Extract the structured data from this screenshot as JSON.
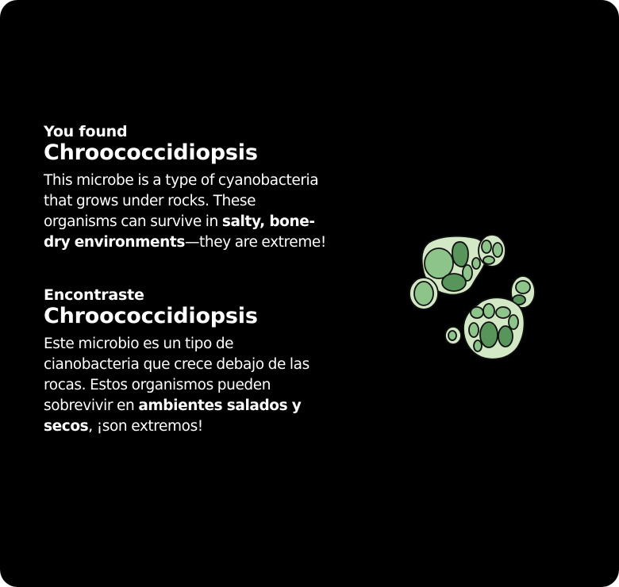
{
  "english": {
    "kicker": "You found",
    "name": "Chroococcidiopsis",
    "body_part1": "This microbe is a type of cyanobacteria that grows under rocks. These organisms can survive in ",
    "body_bold": "salty, bone-dry environments",
    "body_part2": "—they are extreme!"
  },
  "spanish": {
    "kicker": "Encontraste",
    "name": "Chroococcidiopsis",
    "body_part1": "Este microbio es un tipo de cianobacteria que crece debajo de las rocas. Estos organismos pueden sobrevivir en ",
    "body_bold": "ambientes salados y secos",
    "body_part2": ", ¡son extremos!"
  },
  "colors": {
    "background": "#000000",
    "text": "#ffffff",
    "cell_light": "#d3e8c5",
    "cell_mid": "#8cc48a",
    "cell_dark": "#57955a"
  },
  "illustration": {
    "icon": "chroococcidiopsis-microbe-illustration"
  }
}
